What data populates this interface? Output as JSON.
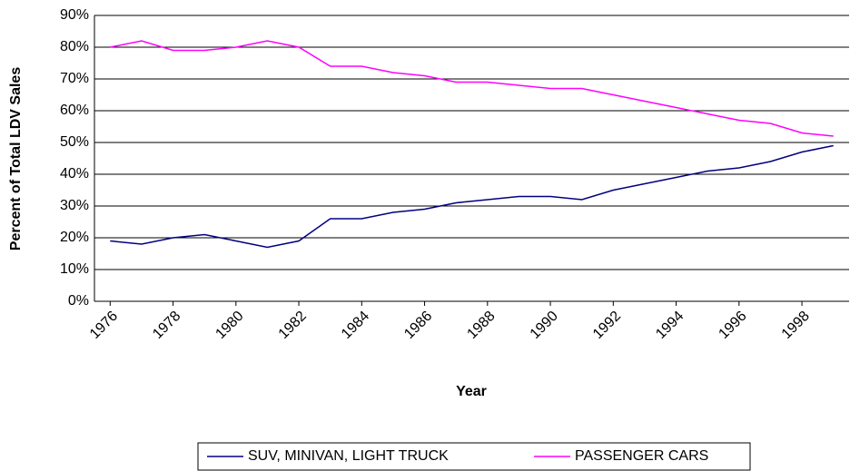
{
  "chart_data": {
    "type": "line",
    "x_label": "Year",
    "y_label": "Percent of Total LDV Sales",
    "categories": [
      "1976",
      null,
      "1978",
      null,
      "1980",
      null,
      "1982",
      null,
      "1984",
      null,
      "1986",
      null,
      "1988",
      null,
      "1990",
      null,
      "1992",
      null,
      "1994",
      null,
      "1996",
      null,
      "1998",
      null
    ],
    "series": [
      {
        "name": "SUV, MINIVAN, LIGHT TRUCK",
        "color": "#000080",
        "values": [
          19,
          18,
          20,
          21,
          19,
          17,
          19,
          26,
          26,
          28,
          29,
          31,
          32,
          33,
          33,
          32,
          35,
          37,
          39,
          41,
          42,
          44,
          47,
          49
        ]
      },
      {
        "name": "PASSENGER CARS",
        "color": "#ff00ff",
        "values": [
          80,
          82,
          79,
          79,
          80,
          82,
          80,
          74,
          74,
          72,
          71,
          69,
          69,
          68,
          67,
          67,
          65,
          63,
          61,
          59,
          57,
          56,
          53,
          52
        ]
      }
    ],
    "ylim": [
      0,
      90
    ],
    "yticks": [
      {
        "value": 0,
        "label": "0%"
      },
      {
        "value": 10,
        "label": "10%"
      },
      {
        "value": 20,
        "label": "20%"
      },
      {
        "value": 30,
        "label": "30%"
      },
      {
        "value": 40,
        "label": "40%"
      },
      {
        "value": 50,
        "label": "50%"
      },
      {
        "value": 60,
        "label": "60%"
      },
      {
        "value": 70,
        "label": "70%"
      },
      {
        "value": 80,
        "label": "80%"
      },
      {
        "value": 90,
        "label": "90%"
      }
    ],
    "grid": true,
    "legend": "bottom"
  }
}
